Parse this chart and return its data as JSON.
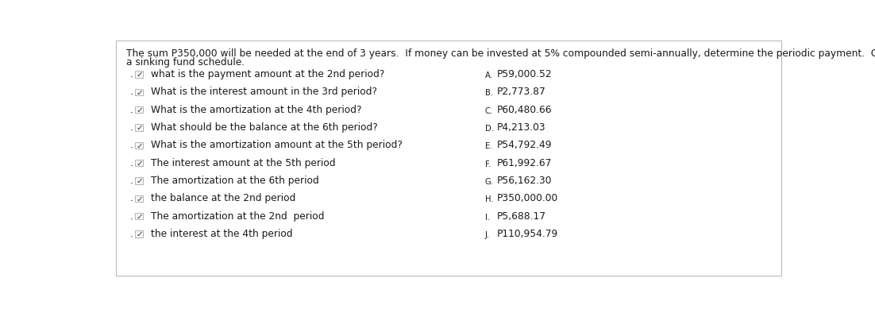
{
  "title_line1": "The sum P350,000 will be needed at the end of 3 years.  If money can be invested at 5% compounded semi-annually, determine the periodic payment.  Create",
  "title_line2": "a sinking fund schedule.",
  "questions": [
    {
      "check": true,
      "text": "what is the payment amount at the 2nd period?"
    },
    {
      "check": true,
      "text": "What is the interest amount in the 3rd period?"
    },
    {
      "check": true,
      "text": "What is the amortization at the 4th period?"
    },
    {
      "check": true,
      "text": "What should be the balance at the 6th period?"
    },
    {
      "check": true,
      "text": "What is the amortization amount at the 5th period?"
    },
    {
      "check": true,
      "text": "The interest amount at the 5th period"
    },
    {
      "check": true,
      "text": "The amortization at the 6th period"
    },
    {
      "check": true,
      "text": "the balance at the 2nd period"
    },
    {
      "check": true,
      "text": "The amortization at the 2nd  period"
    },
    {
      "check": true,
      "text": "the interest at the 4th period"
    }
  ],
  "answers": [
    {
      "label": "A",
      "text": "P59,000.52"
    },
    {
      "label": "B",
      "text": "P2,773.87"
    },
    {
      "label": "C",
      "text": "P60,480.66"
    },
    {
      "label": "D",
      "text": "P4,213.03"
    },
    {
      "label": "E",
      "text": "P54,792.49"
    },
    {
      "label": "F",
      "text": "P61,992.67"
    },
    {
      "label": "G",
      "text": "P56,162.30"
    },
    {
      "label": "H",
      "text": "P350,000.00"
    },
    {
      "label": "I",
      "text": "P5,688.17"
    },
    {
      "label": "J",
      "text": "P110,954.79"
    }
  ],
  "bg_color": "#ffffff",
  "text_color": "#1a1a1a",
  "check_color": "#333333",
  "border_color": "#bbbbbb",
  "title_fontsize": 8.8,
  "question_fontsize": 8.8,
  "answer_fontsize": 8.8,
  "label_fontsize": 7.2
}
